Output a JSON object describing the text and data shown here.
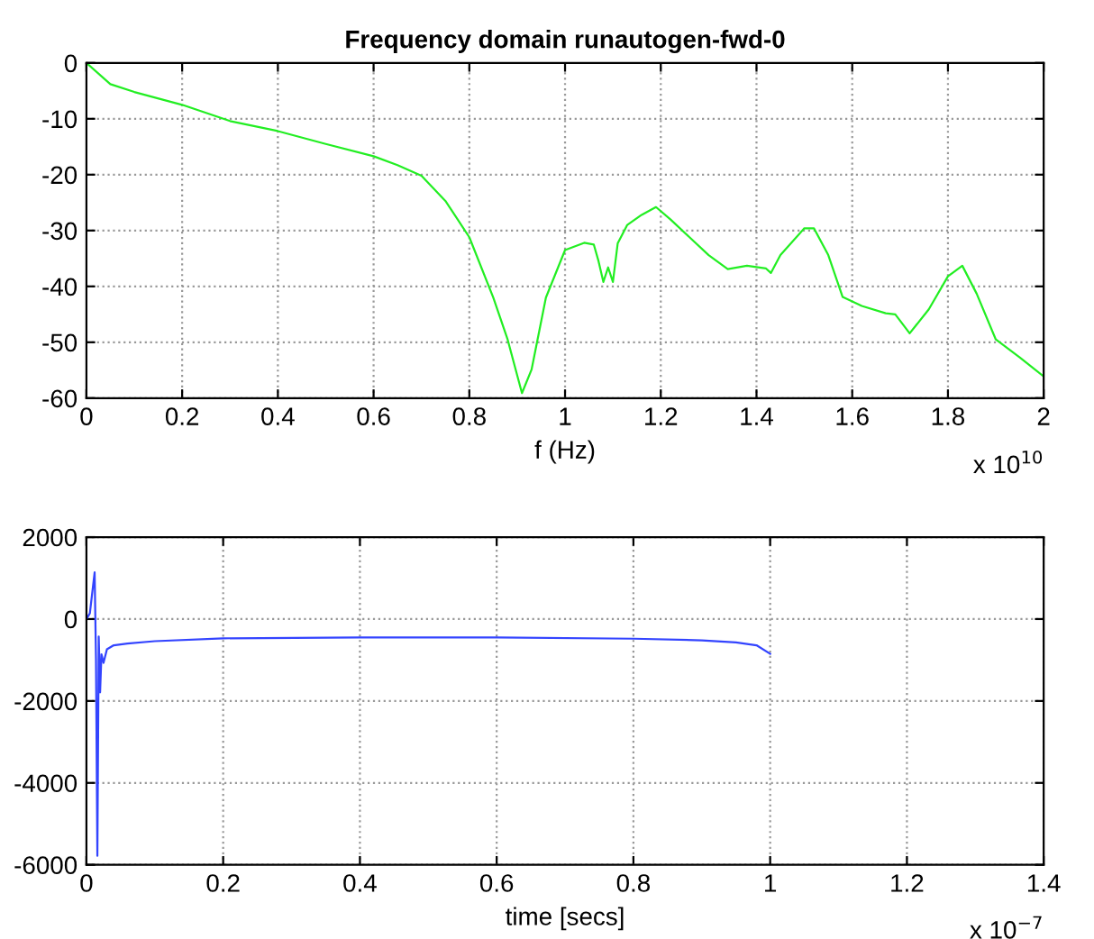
{
  "chart_data": [
    {
      "type": "line",
      "title": "Frequency domain runautogen-fwd-0",
      "xlabel": "f (Hz)",
      "annotations": [
        "x 10$^{10}$"
      ],
      "series": [
        {
          "color": "#22ee22",
          "x": [
            0,
            0.05,
            0.1,
            0.2,
            0.3,
            0.4,
            0.5,
            0.6,
            0.65,
            0.7,
            0.75,
            0.8,
            0.85,
            0.88,
            0.91,
            0.93,
            0.96,
            1,
            1.04,
            1.06,
            1.07,
            1.08,
            1.09,
            1.1,
            1.11,
            1.13,
            1.16,
            1.19,
            1.22,
            1.26,
            1.3,
            1.34,
            1.38,
            1.42,
            1.43,
            1.45,
            1.5,
            1.52,
            1.55,
            1.58,
            1.62,
            1.67,
            1.69,
            1.72,
            1.76,
            1.8,
            1.83,
            1.86,
            1.9,
            1.95,
            2
          ],
          "values": [
            0,
            -3.8,
            -5.2,
            -7.5,
            -10.4,
            -12.2,
            -14.5,
            -16.7,
            -18.3,
            -20.2,
            -24.7,
            -31.2,
            -42,
            -49.5,
            -59.1,
            -54.9,
            -42,
            -33.5,
            -32.2,
            -32.5,
            -35.5,
            -39.2,
            -36.6,
            -39.2,
            -32.3,
            -29,
            -27.2,
            -25.8,
            -28,
            -31.2,
            -34.4,
            -36.9,
            -36.3,
            -36.8,
            -37.6,
            -34.4,
            -29.6,
            -29.6,
            -34.4,
            -41.9,
            -43.5,
            -44.8,
            -45,
            -48.4,
            -44.1,
            -38.2,
            -36.3,
            -41.3,
            -49.5,
            -52.7,
            -56.1
          ]
        }
      ],
      "xlim": [
        0,
        2
      ],
      "xticks": [
        0,
        0.2,
        0.4,
        0.6,
        0.8,
        1,
        1.2,
        1.4,
        1.6,
        1.8,
        2
      ],
      "ylim": [
        -60,
        0
      ],
      "yticks": [
        -60,
        -50,
        -40,
        -30,
        -20,
        -10,
        0
      ],
      "grid": true,
      "line_style": "solid"
    },
    {
      "type": "line",
      "xlabel": "time [secs]",
      "annotations": [
        "x 10$^{−7}$"
      ],
      "series": [
        {
          "color": "#3344ff",
          "x": [
            0,
            0.005,
            0.012,
            0.014,
            0.016,
            0.018,
            0.02,
            0.022,
            0.025,
            0.03,
            0.04,
            0.06,
            0.1,
            0.2,
            0.4,
            0.6,
            0.8,
            0.9,
            0.95,
            0.98,
            1
          ],
          "values": [
            0,
            140,
            1140,
            -1000,
            -5780,
            -430,
            -1790,
            -860,
            -1070,
            -740,
            -640,
            -600,
            -540,
            -470,
            -450,
            -450,
            -480,
            -520,
            -570,
            -640,
            -850
          ]
        }
      ],
      "xlim": [
        0,
        1.4
      ],
      "xticks": [
        0,
        0.2,
        0.4,
        0.6,
        0.8,
        1,
        1.2,
        1.4
      ],
      "ylim": [
        -6000,
        2000
      ],
      "yticks": [
        -6000,
        -4000,
        -2000,
        0,
        2000
      ],
      "grid": true,
      "line_style": "solid"
    }
  ]
}
